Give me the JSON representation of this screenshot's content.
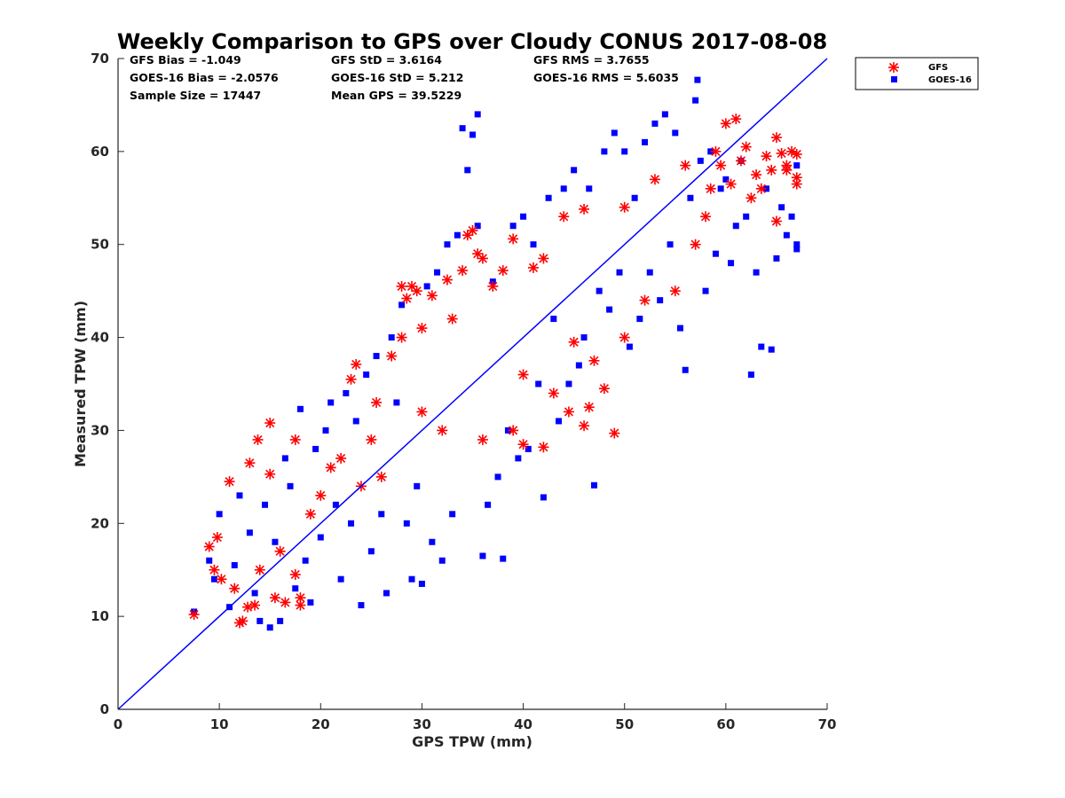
{
  "chart_data": {
    "type": "scatter",
    "title": "Weekly Comparison to GPS over Cloudy CONUS 2017-08-08",
    "xlabel": "GPS TPW (mm)",
    "ylabel": "Measured TPW (mm)",
    "xlim": [
      0,
      70
    ],
    "ylim": [
      0,
      70
    ],
    "xticks": [
      "0",
      "10",
      "20",
      "30",
      "40",
      "50",
      "60",
      "70"
    ],
    "yticks": [
      "0",
      "10",
      "20",
      "30",
      "40",
      "50",
      "60",
      "70"
    ],
    "grid": false,
    "legend_position": "top-right, outside plot",
    "stats": [
      "GFS Bias = -1.049",
      "GFS StD = 3.6164",
      "GFS RMS = 3.7655",
      "GOES-16 Bias = -2.0576",
      "GOES-16 StD = 5.212",
      "GOES-16 RMS = 5.6035",
      "Sample Size = 17447",
      "Mean GPS = 39.5229"
    ],
    "reference_line": {
      "label": "1:1",
      "x": [
        0,
        70
      ],
      "y": [
        0,
        70
      ],
      "color": "#0000ff"
    },
    "series": [
      {
        "name": "GFS",
        "marker": "asterisk",
        "color": "#ff0000",
        "points": [
          [
            7.5,
            10.2
          ],
          [
            9,
            17.5
          ],
          [
            9.5,
            15
          ],
          [
            9.8,
            18.5
          ],
          [
            10.2,
            14
          ],
          [
            11,
            24.5
          ],
          [
            11.5,
            13
          ],
          [
            12,
            9.3
          ],
          [
            12.3,
            9.5
          ],
          [
            12.8,
            11
          ],
          [
            13,
            26.5
          ],
          [
            13.5,
            11.2
          ],
          [
            13.8,
            29
          ],
          [
            14,
            15
          ],
          [
            15,
            30.8
          ],
          [
            15,
            25.3
          ],
          [
            15.5,
            12
          ],
          [
            16,
            17
          ],
          [
            16.5,
            11.5
          ],
          [
            17.5,
            14.5
          ],
          [
            17.5,
            29
          ],
          [
            18,
            12
          ],
          [
            18,
            11.2
          ],
          [
            19,
            21
          ],
          [
            20,
            23
          ],
          [
            21,
            26
          ],
          [
            22,
            27
          ],
          [
            23,
            35.5
          ],
          [
            23.5,
            37.1
          ],
          [
            24,
            24
          ],
          [
            25,
            29
          ],
          [
            25.5,
            33
          ],
          [
            26,
            25
          ],
          [
            27,
            38
          ],
          [
            28,
            40
          ],
          [
            28,
            45.5
          ],
          [
            28.5,
            44.2
          ],
          [
            29,
            45.5
          ],
          [
            29.5,
            45
          ],
          [
            30,
            41
          ],
          [
            30,
            32
          ],
          [
            31,
            44.5
          ],
          [
            32,
            30
          ],
          [
            32.5,
            46.2
          ],
          [
            33,
            42
          ],
          [
            34,
            47.2
          ],
          [
            34.5,
            51
          ],
          [
            35,
            51.5
          ],
          [
            35.5,
            49
          ],
          [
            36,
            48.5
          ],
          [
            36,
            29
          ],
          [
            37,
            45.5
          ],
          [
            38,
            47.2
          ],
          [
            39,
            50.6
          ],
          [
            39,
            30
          ],
          [
            40,
            28.5
          ],
          [
            40,
            36
          ],
          [
            41,
            47.5
          ],
          [
            42,
            48.5
          ],
          [
            42,
            28.2
          ],
          [
            43,
            34
          ],
          [
            44,
            53
          ],
          [
            44.5,
            32
          ],
          [
            45,
            39.5
          ],
          [
            46,
            53.8
          ],
          [
            46,
            30.5
          ],
          [
            46.5,
            32.5
          ],
          [
            47,
            37.5
          ],
          [
            48,
            34.5
          ],
          [
            49,
            29.7
          ],
          [
            50,
            40
          ],
          [
            50,
            54
          ],
          [
            52,
            44
          ],
          [
            53,
            57
          ],
          [
            55,
            45
          ],
          [
            56,
            58.5
          ],
          [
            57,
            50
          ],
          [
            58,
            53
          ],
          [
            58.5,
            56
          ],
          [
            59,
            60
          ],
          [
            59.5,
            58.5
          ],
          [
            60,
            63
          ],
          [
            60.5,
            56.5
          ],
          [
            61,
            63.5
          ],
          [
            61.5,
            59
          ],
          [
            62,
            60.5
          ],
          [
            62.5,
            55
          ],
          [
            63,
            57.5
          ],
          [
            63.5,
            56
          ],
          [
            64,
            59.5
          ],
          [
            64.5,
            58
          ],
          [
            65,
            61.5
          ],
          [
            65,
            52.5
          ],
          [
            65.5,
            59.8
          ],
          [
            66,
            58.5
          ],
          [
            66.5,
            60
          ],
          [
            67,
            59.7
          ],
          [
            67,
            57.2
          ],
          [
            67,
            56.5
          ],
          [
            66,
            58
          ]
        ]
      },
      {
        "name": "GOES-16",
        "marker": "square",
        "color": "#0000ff",
        "points": [
          [
            7.5,
            10.5
          ],
          [
            9,
            16
          ],
          [
            9.5,
            14
          ],
          [
            10,
            21
          ],
          [
            11,
            11
          ],
          [
            11.5,
            15.5
          ],
          [
            12,
            23
          ],
          [
            13,
            19
          ],
          [
            13.5,
            12.5
          ],
          [
            14,
            9.5
          ],
          [
            14.5,
            22
          ],
          [
            15,
            8.8
          ],
          [
            15.5,
            18
          ],
          [
            16,
            9.5
          ],
          [
            16.5,
            27
          ],
          [
            17,
            24
          ],
          [
            17.5,
            13
          ],
          [
            18,
            32.3
          ],
          [
            18.5,
            16
          ],
          [
            19,
            11.5
          ],
          [
            19.5,
            28
          ],
          [
            20,
            18.5
          ],
          [
            20.5,
            30
          ],
          [
            21,
            33
          ],
          [
            21.5,
            22
          ],
          [
            22,
            14
          ],
          [
            22.5,
            34
          ],
          [
            23,
            20
          ],
          [
            23.5,
            31
          ],
          [
            24,
            11.2
          ],
          [
            24.5,
            36
          ],
          [
            25,
            17
          ],
          [
            25.5,
            38
          ],
          [
            26,
            21
          ],
          [
            26.5,
            12.5
          ],
          [
            27,
            40
          ],
          [
            27.5,
            33
          ],
          [
            28,
            43.5
          ],
          [
            28.5,
            20
          ],
          [
            29,
            14
          ],
          [
            29.5,
            24
          ],
          [
            30,
            13.5
          ],
          [
            30.5,
            45.5
          ],
          [
            31,
            18
          ],
          [
            31.5,
            47
          ],
          [
            32,
            16
          ],
          [
            32.5,
            50
          ],
          [
            33,
            21
          ],
          [
            33.5,
            51
          ],
          [
            34,
            62.5
          ],
          [
            34.5,
            58
          ],
          [
            35,
            61.8
          ],
          [
            35.5,
            64
          ],
          [
            35.5,
            52
          ],
          [
            36,
            16.5
          ],
          [
            36.5,
            22
          ],
          [
            37,
            46
          ],
          [
            37.5,
            25
          ],
          [
            38,
            16.2
          ],
          [
            38.5,
            30
          ],
          [
            39,
            52
          ],
          [
            39.5,
            27
          ],
          [
            40,
            53
          ],
          [
            40.5,
            28
          ],
          [
            41,
            50
          ],
          [
            41.5,
            35
          ],
          [
            42,
            22.8
          ],
          [
            42.5,
            55
          ],
          [
            43,
            42
          ],
          [
            43.5,
            31
          ],
          [
            44,
            56
          ],
          [
            44.5,
            35
          ],
          [
            45,
            58
          ],
          [
            45.5,
            37
          ],
          [
            46,
            40
          ],
          [
            46.5,
            56
          ],
          [
            47,
            24.1
          ],
          [
            47.5,
            45
          ],
          [
            48,
            60
          ],
          [
            48.5,
            43
          ],
          [
            49,
            62
          ],
          [
            49.5,
            47
          ],
          [
            50,
            60
          ],
          [
            50.5,
            39
          ],
          [
            51,
            55
          ],
          [
            51.5,
            42
          ],
          [
            52,
            61
          ],
          [
            52.5,
            47
          ],
          [
            53,
            63
          ],
          [
            53.5,
            44
          ],
          [
            54,
            64
          ],
          [
            54.5,
            50
          ],
          [
            55,
            62
          ],
          [
            55.5,
            41
          ],
          [
            56,
            36.5
          ],
          [
            56.5,
            55
          ],
          [
            57,
            65.5
          ],
          [
            57.2,
            67.7
          ],
          [
            57.5,
            59
          ],
          [
            58,
            45
          ],
          [
            58.5,
            60
          ],
          [
            59,
            49
          ],
          [
            59.5,
            56
          ],
          [
            60,
            57
          ],
          [
            60.5,
            48
          ],
          [
            61,
            52
          ],
          [
            61.5,
            59
          ],
          [
            62,
            53
          ],
          [
            62.5,
            36
          ],
          [
            63,
            47
          ],
          [
            63.5,
            39
          ],
          [
            64,
            56
          ],
          [
            64.5,
            38.7
          ],
          [
            65,
            48.5
          ],
          [
            65.5,
            54
          ],
          [
            66,
            51
          ],
          [
            66.5,
            53
          ],
          [
            67,
            50
          ],
          [
            67,
            49.5
          ],
          [
            67,
            58.5
          ]
        ]
      }
    ]
  }
}
